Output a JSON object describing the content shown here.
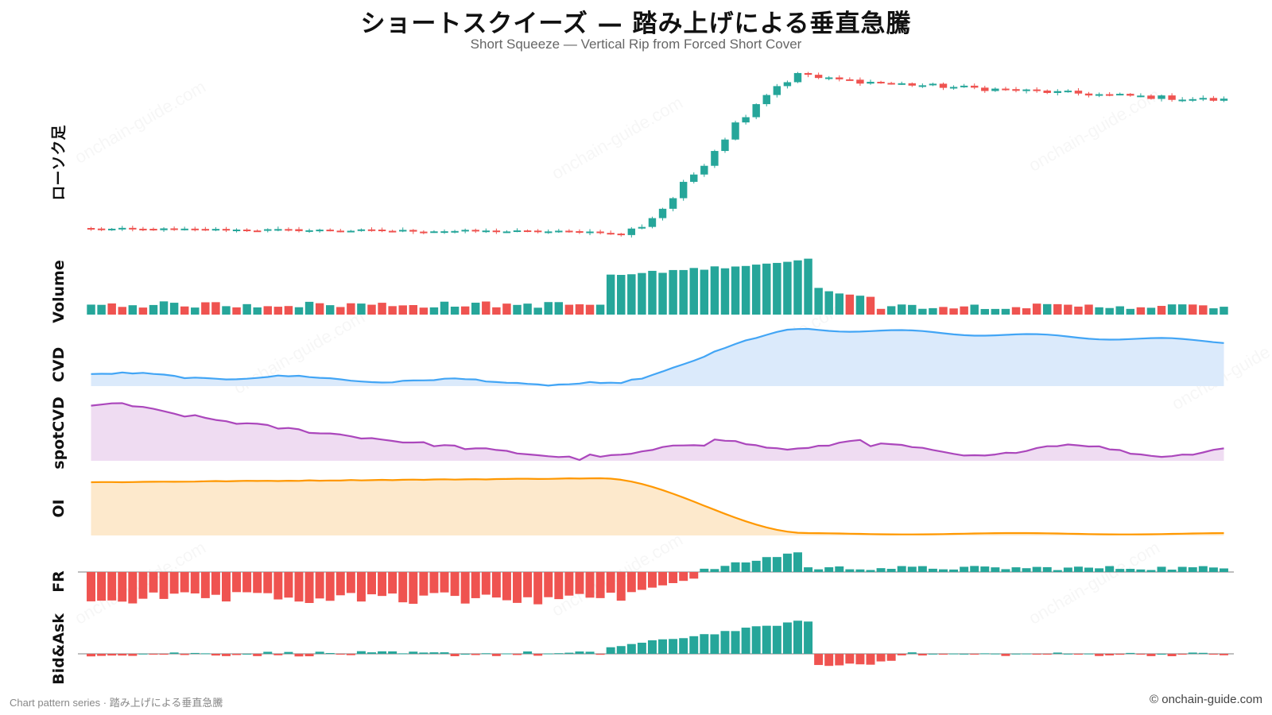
{
  "title": "ショートスクイーズ — 踏み上げによる垂直急騰",
  "subtitle": "Short Squeeze — Vertical Rip from Forced Short Cover",
  "footer_left": "Chart pattern series · 踏み上げによる垂直急騰",
  "footer_right": "© onchain-guide.com",
  "watermark": "onchain-guide.com",
  "colors": {
    "up": "#26a69a",
    "down": "#ef5350",
    "cvd": "#42a5f5",
    "cvd_fill": "#dbeafb",
    "spot": "#ab47bc",
    "spot_fill": "#efdcf2",
    "oi": "#ff9800",
    "oi_fill": "#fde9cc"
  },
  "chart_data": {
    "type": "candlestick",
    "bars": 110,
    "panels": [
      {
        "id": "candles",
        "label": "ローソク足",
        "type": "candlestick",
        "shape": {
          "base": 100,
          "pre_drift_end": 97.5,
          "rip_start_bar": 50,
          "rip_end_bar": 69,
          "peak": 232,
          "settle": 210
        }
      },
      {
        "id": "volume",
        "label": "Volume",
        "type": "bar",
        "shape": {
          "pre_range": [
            12,
            24
          ],
          "rip_range": [
            70,
            98
          ],
          "tail": [
            48,
            42,
            38,
            36,
            34,
            32
          ],
          "post_range": [
            10,
            20
          ]
        }
      },
      {
        "id": "cvd",
        "label": "CVD",
        "type": "area",
        "shape": {
          "start": 20,
          "trough_bar": 49,
          "trough": 4,
          "peak_bar": 69,
          "peak": 100,
          "end": 78
        }
      },
      {
        "id": "spotcvd",
        "label": "spotCVD",
        "type": "area",
        "shape": {
          "start": 95,
          "peak_bar": 2,
          "peak": 100,
          "trough_bar": 48,
          "trough": 2,
          "end": 35
        }
      },
      {
        "id": "oi",
        "label": "OI",
        "type": "area",
        "shape": {
          "start": 93,
          "peak_bar": 49,
          "peak": 100,
          "bottom_bar": 69,
          "bottom": 4,
          "end": 3
        }
      },
      {
        "id": "fr",
        "label": "FR",
        "type": "bar",
        "zero_line": true,
        "shape": {
          "neg_range": [
            -0.75,
            -0.95
          ],
          "flip_bar": 59,
          "pos_peak_bar": 68,
          "pos_peak": 0.55
        }
      },
      {
        "id": "bidask",
        "label": "Bid&Ask",
        "type": "bar",
        "zero_line": true,
        "shape": {
          "pre_noise": 0.08,
          "rip_range": [
            0.2,
            1.0
          ],
          "neg_range": [
            -0.2,
            -0.45
          ],
          "post_noise": 0.06
        }
      }
    ]
  }
}
